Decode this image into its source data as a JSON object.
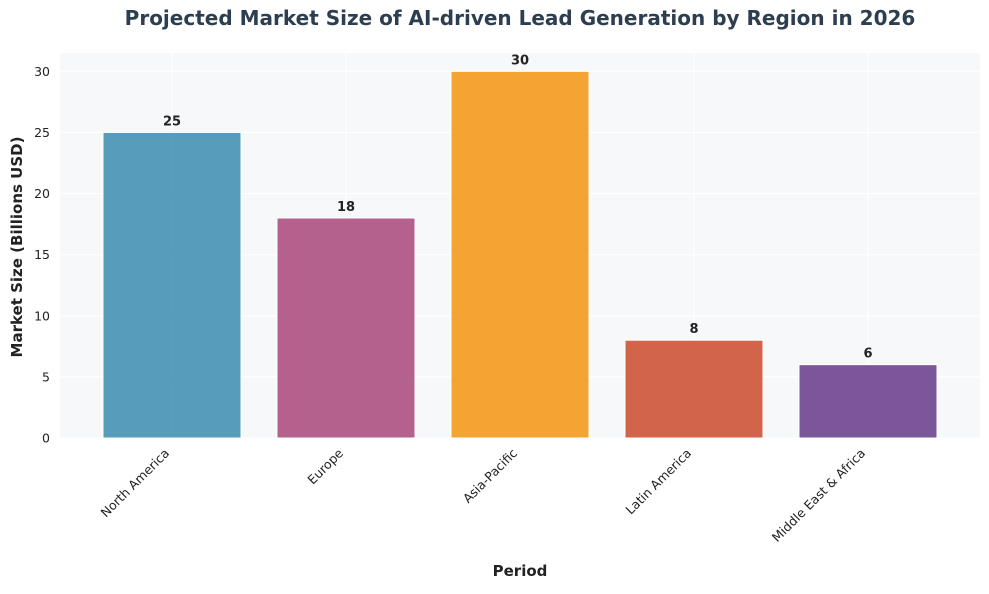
{
  "chart_data": {
    "type": "bar",
    "title": "Projected Market Size of AI-driven Lead Generation by Region in 2026",
    "xlabel": "Period",
    "ylabel": "Market Size (Billions USD)",
    "categories": [
      "North America",
      "Europe",
      "Asia-Pacific",
      "Latin America",
      "Middle East & Africa"
    ],
    "values": [
      25,
      18,
      30,
      8,
      6
    ],
    "data_labels": [
      "25",
      "18",
      "30",
      "8",
      "6"
    ],
    "colors": [
      "#2E86AB",
      "#A23B72",
      "#F18F01",
      "#C73E1D",
      "#5C2D82"
    ],
    "ylim": [
      0,
      31.5
    ],
    "yticks": [
      0,
      5,
      10,
      15,
      20,
      25,
      30
    ],
    "grid": true,
    "background": "#F7F8FA",
    "title_color": "#2C3E50"
  }
}
